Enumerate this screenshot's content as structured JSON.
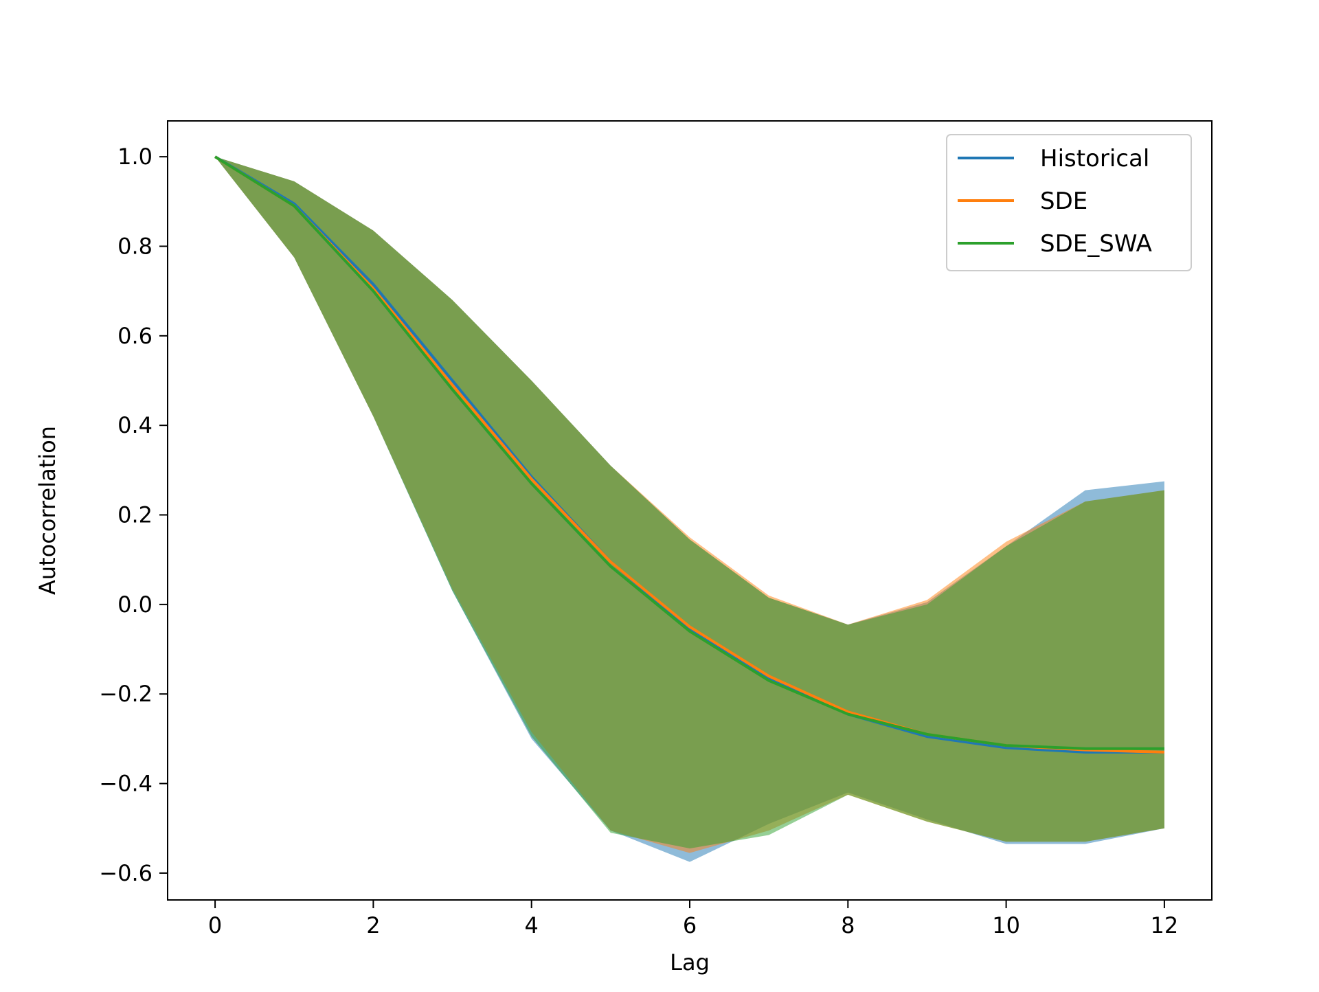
{
  "chart_data": {
    "type": "line",
    "title": "",
    "xlabel": "Lag",
    "ylabel": "Autocorrelation",
    "xlim": [
      -0.6,
      12.6
    ],
    "ylim": [
      -0.66,
      1.08
    ],
    "x": [
      0,
      1,
      2,
      3,
      4,
      5,
      6,
      7,
      8,
      9,
      10,
      11,
      12
    ],
    "x_ticks": [
      0,
      2,
      4,
      6,
      8,
      10,
      12
    ],
    "x_tick_labels": [
      "0",
      "2",
      "4",
      "6",
      "8",
      "10",
      "12"
    ],
    "y_ticks": [
      1.0,
      0.8,
      0.6,
      0.4,
      0.2,
      0.0,
      -0.2,
      -0.4,
      -0.6
    ],
    "y_tick_labels": [
      "1.0",
      "0.8",
      "0.6",
      "0.4",
      "0.2",
      "0.0",
      "−0.2",
      "−0.4",
      "−0.6"
    ],
    "grid": false,
    "legend_position": "top-right",
    "series": [
      {
        "name": "Historical",
        "color": "#1f77b4",
        "values": [
          1.0,
          0.895,
          0.715,
          0.5,
          0.285,
          0.095,
          -0.055,
          -0.165,
          -0.245,
          -0.295,
          -0.32,
          -0.33,
          -0.33
        ],
        "band_upper": [
          1.0,
          0.945,
          0.835,
          0.68,
          0.5,
          0.31,
          0.145,
          0.015,
          -0.045,
          0.005,
          0.13,
          0.255,
          0.275
        ],
        "band_lower": [
          1.0,
          0.775,
          0.42,
          0.03,
          -0.3,
          -0.505,
          -0.575,
          -0.49,
          -0.42,
          -0.48,
          -0.535,
          -0.535,
          -0.5
        ]
      },
      {
        "name": "SDE",
        "color": "#ff7f0e",
        "values": [
          1.0,
          0.89,
          0.705,
          0.49,
          0.28,
          0.095,
          -0.05,
          -0.16,
          -0.24,
          -0.29,
          -0.315,
          -0.325,
          -0.33
        ],
        "band_upper": [
          1.0,
          0.945,
          0.835,
          0.68,
          0.5,
          0.31,
          0.15,
          0.02,
          -0.045,
          0.01,
          0.14,
          0.23,
          0.255
        ],
        "band_lower": [
          1.0,
          0.775,
          0.42,
          0.035,
          -0.285,
          -0.505,
          -0.555,
          -0.505,
          -0.425,
          -0.485,
          -0.53,
          -0.53,
          -0.5
        ]
      },
      {
        "name": "SDE_SWA",
        "color": "#2ca02c",
        "values": [
          1.0,
          0.89,
          0.7,
          0.48,
          0.27,
          0.085,
          -0.06,
          -0.17,
          -0.245,
          -0.29,
          -0.315,
          -0.322,
          -0.322
        ],
        "band_upper": [
          1.0,
          0.945,
          0.835,
          0.68,
          0.5,
          0.31,
          0.145,
          0.015,
          -0.045,
          0.0,
          0.13,
          0.23,
          0.255
        ],
        "band_lower": [
          1.0,
          0.775,
          0.42,
          0.03,
          -0.295,
          -0.51,
          -0.545,
          -0.515,
          -0.425,
          -0.485,
          -0.53,
          -0.53,
          -0.5
        ]
      }
    ]
  }
}
